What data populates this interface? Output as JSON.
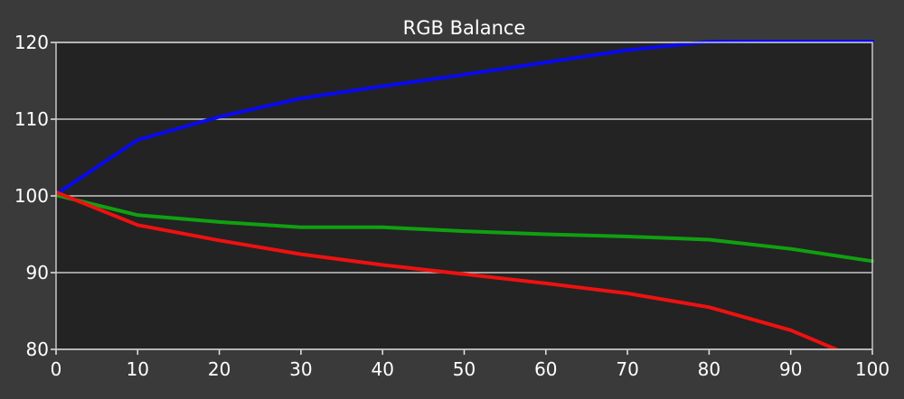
{
  "chart_data": {
    "type": "line",
    "title": "RGB Balance",
    "xlabel": "",
    "ylabel": "",
    "xlim": [
      0,
      100
    ],
    "ylim": [
      80,
      120
    ],
    "x_ticks": [
      0,
      10,
      20,
      30,
      40,
      50,
      60,
      70,
      80,
      90,
      100
    ],
    "y_ticks": [
      80,
      90,
      100,
      110,
      120
    ],
    "grid": "horizontal",
    "legend": "none",
    "background_color": "#3a3a3a",
    "plot_background_color": "#232323",
    "gridline_color": "#c8c8c8",
    "series": [
      {
        "color": "#0a0aee",
        "x": [
          0,
          10,
          20,
          30,
          40,
          50,
          60,
          70,
          80,
          90,
          100
        ],
        "y": [
          100.2,
          107.3,
          110.3,
          112.7,
          114.3,
          115.8,
          117.4,
          119.0,
          120.1,
          120.2,
          120.2
        ]
      },
      {
        "color": "#10a010",
        "x": [
          0,
          10,
          20,
          30,
          40,
          50,
          60,
          70,
          80,
          90,
          100
        ],
        "y": [
          100.1,
          97.5,
          96.6,
          95.9,
          95.9,
          95.4,
          95.0,
          94.7,
          94.3,
          93.1,
          91.5
        ]
      },
      {
        "color": "#ee1111",
        "x": [
          0,
          10,
          20,
          30,
          40,
          50,
          60,
          70,
          80,
          90,
          96
        ],
        "y": [
          100.5,
          96.2,
          94.2,
          92.4,
          91.0,
          89.8,
          88.6,
          87.3,
          85.5,
          82.5,
          79.8
        ]
      }
    ]
  }
}
